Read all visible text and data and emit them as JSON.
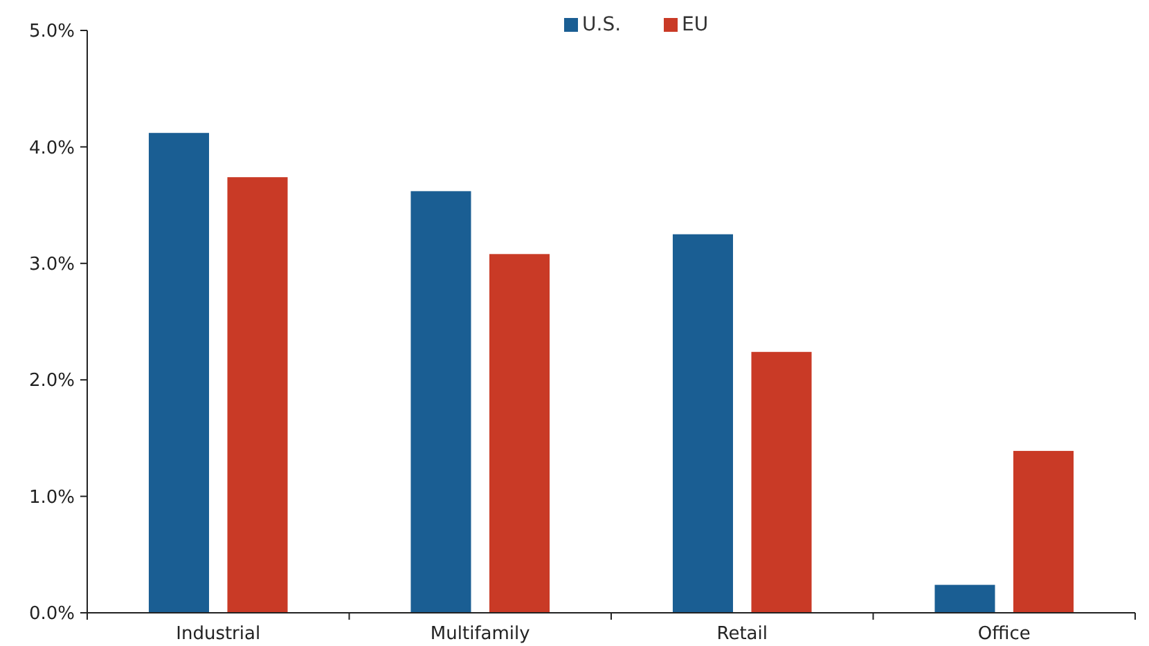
{
  "chart_data": {
    "type": "bar",
    "categories": [
      "Industrial",
      "Multifamily",
      "Retail",
      "Office"
    ],
    "series": [
      {
        "name": "U.S.",
        "color": "#1a5e93",
        "values": [
          4.12,
          3.62,
          3.25,
          0.24
        ]
      },
      {
        "name": "EU",
        "color": "#c93a26",
        "values": [
          3.74,
          3.08,
          2.24,
          1.39
        ]
      }
    ],
    "ylim": [
      0,
      5
    ],
    "yticks": [
      {
        "value": 0,
        "label": "0.0%"
      },
      {
        "value": 1,
        "label": "1.0%"
      },
      {
        "value": 2,
        "label": "2.0%"
      },
      {
        "value": 3,
        "label": "3.0%"
      },
      {
        "value": 4,
        "label": "4.0%"
      },
      {
        "value": 5,
        "label": "5.0%"
      }
    ],
    "grid": false,
    "legend": "top"
  }
}
